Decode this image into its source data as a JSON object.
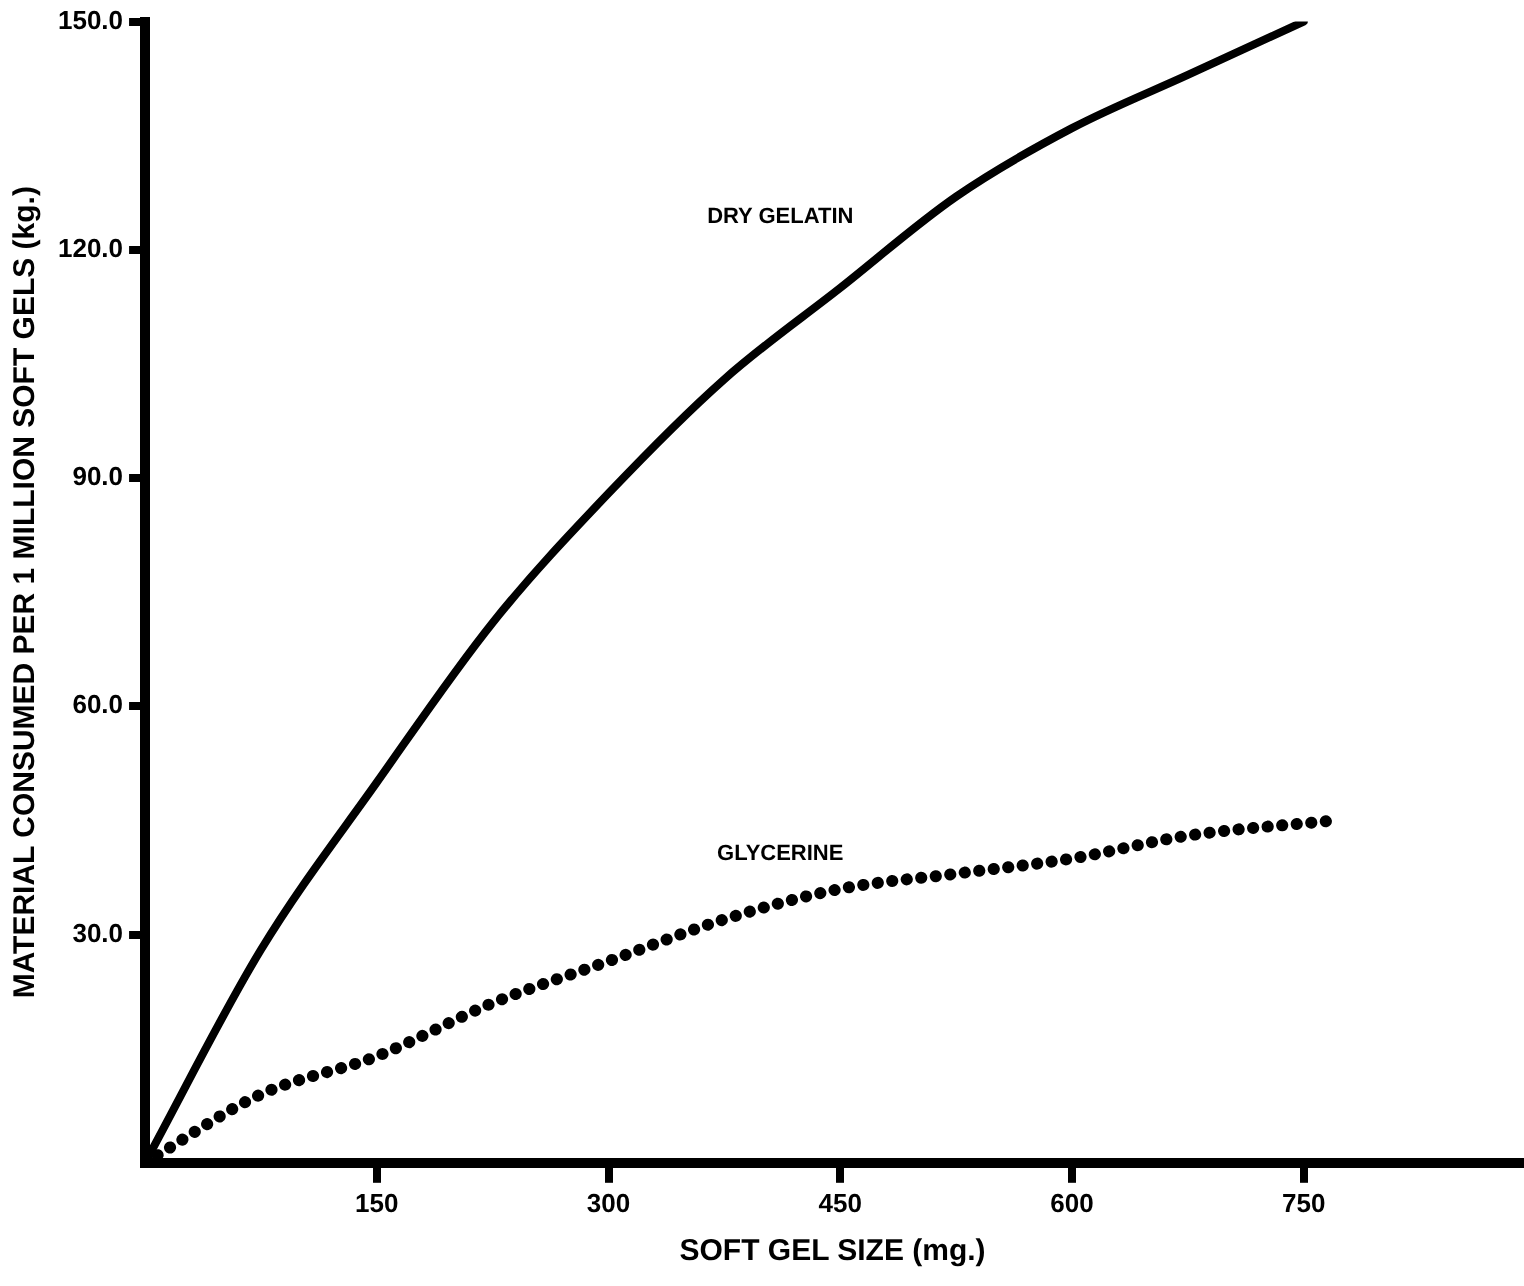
{
  "chart_data": {
    "type": "line",
    "xlabel": "SOFT GEL SIZE (mg.)",
    "ylabel": "MATERIAL CONSUMED PER 1 MILLION SOFT GELS (kg.)",
    "x": [
      0,
      75,
      150,
      225,
      300,
      375,
      450,
      525,
      600,
      675,
      750
    ],
    "series": [
      {
        "name": "DRY GELATIN",
        "color": "#000000",
        "line_style": "solid",
        "values": [
          0,
          28,
          50,
          71,
          88,
          103,
          115,
          127,
          136,
          143,
          150
        ]
      },
      {
        "name": "GLYCERINE",
        "color": "#000000",
        "line_style": "dotted",
        "x": [
          0,
          75,
          150,
          225,
          300,
          375,
          450,
          525,
          600,
          675,
          770
        ],
        "values": [
          0,
          9,
          14,
          21,
          26.5,
          32,
          36,
          38,
          40,
          43,
          45
        ]
      }
    ],
    "xlim": [
      0,
      890
    ],
    "xticks": [
      150,
      300,
      450,
      600,
      750
    ],
    "ylim": [
      0,
      150
    ],
    "yticks": [
      {
        "value": 30,
        "label": "30.0"
      },
      {
        "value": 60,
        "label": "60.0"
      },
      {
        "value": 90,
        "label": "90.0"
      },
      {
        "value": 120,
        "label": "120.0"
      },
      {
        "value": 150,
        "label": "150.0"
      }
    ],
    "grid": false,
    "legend": false,
    "marker": "none"
  }
}
